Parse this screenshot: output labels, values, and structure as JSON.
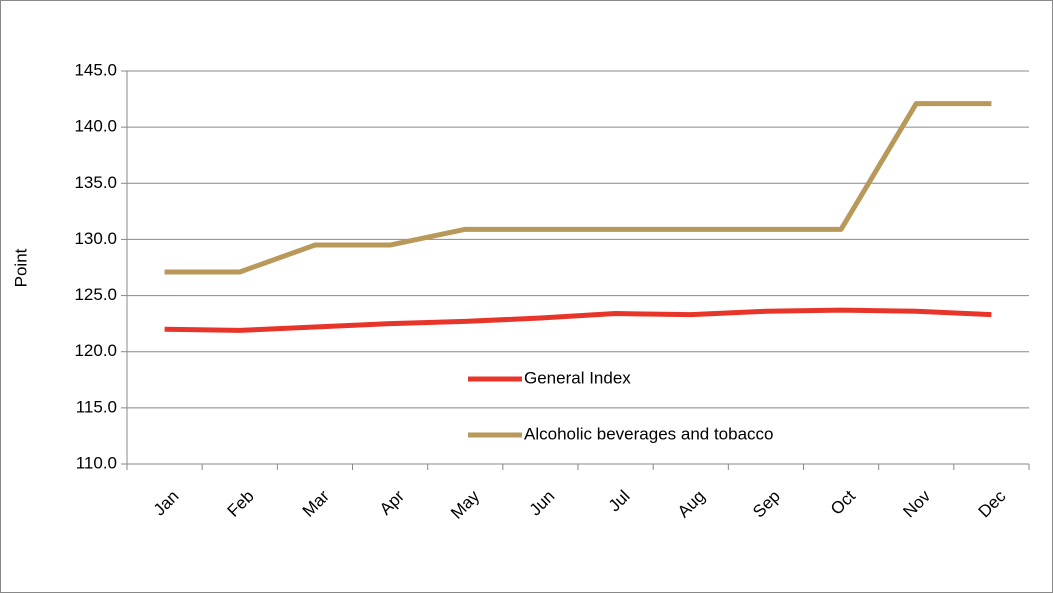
{
  "chart_data": {
    "type": "line",
    "y_label": "Point",
    "categories": [
      "Jan",
      "Feb",
      "Mar",
      "Apr",
      "May",
      "Jun",
      "Jul",
      "Aug",
      "Sep",
      "Oct",
      "Nov",
      "Dec"
    ],
    "series": [
      {
        "name": "General Index",
        "color": "#e8352a",
        "values": [
          122.0,
          121.9,
          122.2,
          122.5,
          122.7,
          123.0,
          123.4,
          123.3,
          123.6,
          123.7,
          123.6,
          123.3
        ]
      },
      {
        "name": "Alcoholic beverages and tobacco",
        "color": "#b8995a",
        "values": [
          127.1,
          127.1,
          129.5,
          129.5,
          130.9,
          130.9,
          130.9,
          130.9,
          130.9,
          130.9,
          142.1,
          142.1
        ]
      }
    ],
    "ylim": [
      110,
      145
    ],
    "yticks": [
      {
        "value": 110,
        "label": "110.0"
      },
      {
        "value": 115,
        "label": "115.0"
      },
      {
        "value": 120,
        "label": "120.0"
      },
      {
        "value": 125,
        "label": "125.0"
      },
      {
        "value": 130,
        "label": "130.0"
      },
      {
        "value": 135,
        "label": "135.0"
      },
      {
        "value": 140,
        "label": "140.0"
      },
      {
        "value": 145,
        "label": "145.0"
      }
    ],
    "grid": true,
    "legend": "center"
  }
}
